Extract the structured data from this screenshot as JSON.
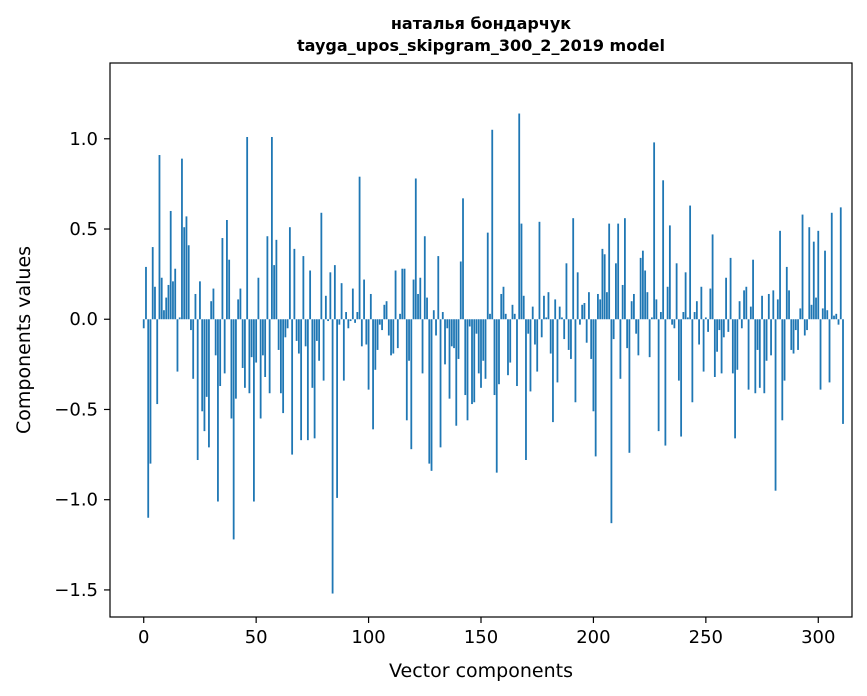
{
  "chart_data": {
    "type": "bar",
    "title": "наталья бондарчук",
    "subtitle": "tayga_upos_skipgram_300_2_2019 model",
    "xlabel": "Vector components",
    "ylabel": "Components values",
    "xlim": [
      -15,
      315
    ],
    "ylim": [
      -1.65,
      1.42
    ],
    "xticks": [
      0,
      50,
      100,
      150,
      200,
      250,
      300
    ],
    "xtick_labels": [
      "0",
      "50",
      "100",
      "150",
      "200",
      "250",
      "300"
    ],
    "yticks": [
      -1.5,
      -1.0,
      -0.5,
      0.0,
      0.5,
      1.0
    ],
    "ytick_labels": [
      "−1.5",
      "−1.0",
      "−0.5",
      "0.0",
      "0.5",
      "1.0"
    ],
    "bar_color": "#1f77b4",
    "grid": false,
    "legend": "none",
    "values": [
      -0.05,
      0.29,
      -1.1,
      -0.8,
      0.4,
      0.18,
      -0.47,
      0.91,
      0.23,
      0.05,
      0.12,
      0.19,
      0.6,
      0.21,
      0.28,
      -0.29,
      0.01,
      0.89,
      0.51,
      0.57,
      0.41,
      -0.06,
      -0.33,
      0.14,
      -0.78,
      0.21,
      -0.51,
      -0.62,
      -0.43,
      -0.71,
      0.1,
      0.17,
      -0.2,
      -1.01,
      -0.37,
      0.45,
      -0.3,
      0.55,
      0.33,
      -0.55,
      -1.22,
      -0.44,
      0.11,
      0.17,
      -0.27,
      -0.38,
      1.01,
      -0.41,
      -0.21,
      -1.01,
      -0.24,
      0.23,
      -0.55,
      -0.2,
      -0.32,
      0.46,
      -0.41,
      1.01,
      0.3,
      0.44,
      -0.17,
      -0.41,
      -0.52,
      -0.1,
      -0.05,
      0.51,
      -0.75,
      0.39,
      -0.12,
      -0.19,
      -0.67,
      0.35,
      -0.15,
      -0.67,
      0.27,
      -0.38,
      -0.66,
      -0.12,
      -0.23,
      0.59,
      -0.34,
      0.13,
      -0.01,
      0.26,
      -1.52,
      0.3,
      -0.99,
      -0.03,
      0.2,
      -0.34,
      0.04,
      -0.05,
      -0.01,
      0.17,
      -0.02,
      0.04,
      0.79,
      -0.15,
      0.22,
      -0.14,
      -0.39,
      0.14,
      -0.61,
      -0.28,
      -0.17,
      -0.03,
      -0.06,
      0.08,
      0.1,
      -0.09,
      -0.2,
      -0.19,
      0.27,
      -0.16,
      0.03,
      0.28,
      0.28,
      -0.56,
      -0.23,
      -0.72,
      0.22,
      0.78,
      0.14,
      0.23,
      -0.3,
      0.46,
      0.12,
      -0.8,
      -0.84,
      0.05,
      -0.09,
      0.35,
      -0.71,
      0.04,
      -0.25,
      -0.05,
      -0.44,
      -0.15,
      -0.16,
      -0.59,
      -0.22,
      0.32,
      0.67,
      -0.42,
      -0.56,
      -0.04,
      -0.47,
      -0.46,
      -0.08,
      -0.3,
      -0.38,
      -0.23,
      -0.33,
      0.48,
      0.03,
      1.05,
      -0.42,
      -0.85,
      -0.36,
      0.14,
      0.18,
      0.03,
      -0.31,
      -0.24,
      0.08,
      0.03,
      -0.37,
      1.14,
      0.53,
      0.13,
      -0.78,
      -0.08,
      -0.4,
      0.07,
      -0.14,
      -0.29,
      0.54,
      -0.1,
      0.13,
      0.01,
      0.15,
      -0.19,
      -0.57,
      0.11,
      -0.35,
      0.07,
      0.01,
      -0.11,
      0.31,
      -0.17,
      -0.22,
      0.56,
      -0.46,
      0.26,
      -0.03,
      0.08,
      0.09,
      -0.13,
      0.15,
      -0.22,
      -0.51,
      -0.76,
      0.14,
      0.11,
      0.39,
      0.36,
      0.15,
      0.53,
      -1.13,
      -0.11,
      0.31,
      0.53,
      -0.33,
      0.19,
      0.56,
      -0.16,
      -0.74,
      0.1,
      0.14,
      -0.08,
      -0.2,
      0.34,
      0.38,
      0.27,
      0.15,
      -0.21,
      0.01,
      0.98,
      0.11,
      -0.62,
      0.04,
      0.77,
      -0.7,
      0.18,
      0.52,
      -0.03,
      -0.05,
      0.31,
      -0.34,
      -0.65,
      0.04,
      0.26,
      0.01,
      0.63,
      -0.46,
      0.04,
      0.1,
      -0.14,
      0.18,
      -0.29,
      0.01,
      -0.07,
      0.17,
      0.47,
      -0.32,
      -0.18,
      -0.06,
      -0.3,
      -0.1,
      0.23,
      -0.07,
      0.34,
      -0.3,
      -0.66,
      -0.28,
      0.1,
      -0.05,
      0.16,
      0.18,
      -0.39,
      0.07,
      0.33,
      -0.41,
      -0.17,
      -0.38,
      0.13,
      -0.41,
      -0.23,
      0.14,
      -0.2,
      0.16,
      -0.95,
      0.11,
      0.49,
      -0.56,
      -0.34,
      0.29,
      0.16,
      -0.17,
      -0.19,
      -0.06,
      -0.17,
      0.06,
      0.58,
      -0.09,
      -0.06,
      0.51,
      0.08,
      0.43,
      0.12,
      0.49,
      -0.39,
      0.06,
      0.38,
      0.05,
      -0.35,
      0.59,
      0.02,
      0.03,
      -0.03,
      0.62,
      -0.58
    ]
  }
}
